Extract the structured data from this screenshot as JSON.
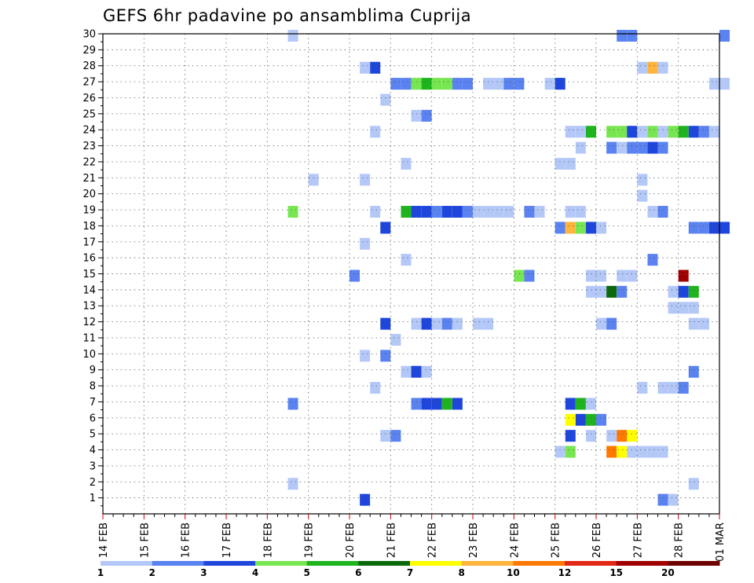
{
  "chart_data": {
    "type": "heatmap",
    "title": "GEFS 6hr padavine po ansamblima Cuprija",
    "x_tick_labels": [
      "14 FEB",
      "15 FEB",
      "16 FEB",
      "17 FEB",
      "18 FEB",
      "19 FEB",
      "20 FEB",
      "21 FEB",
      "22 FEB",
      "23 FEB",
      "24 FEB",
      "25 FEB",
      "26 FEB",
      "27 FEB",
      "28 FEB",
      "01 MAR"
    ],
    "y_tick_labels": [
      "1",
      "2",
      "3",
      "4",
      "5",
      "6",
      "7",
      "8",
      "9",
      "10",
      "11",
      "12",
      "13",
      "14",
      "15",
      "16",
      "17",
      "18",
      "19",
      "20",
      "21",
      "22",
      "23",
      "24",
      "25",
      "26",
      "27",
      "28",
      "29",
      "30"
    ],
    "x_range": [
      "14 FEB",
      "01 MAR"
    ],
    "steps_per_day": 4,
    "y_range": [
      0,
      30
    ],
    "grid": "dotted",
    "legend": {
      "placement": "bottom",
      "labels": [
        "1",
        "2",
        "3",
        "4",
        "5",
        "6",
        "7",
        "8",
        "10",
        "12",
        "15",
        "20"
      ],
      "colors": [
        "#b4c8f8",
        "#5a82f0",
        "#1e46dc",
        "#78e650",
        "#1eb41e",
        "#0a690a",
        "#ffff00",
        "#ffb43c",
        "#ff7800",
        "#e12814",
        "#a00000",
        "#6e0000"
      ]
    },
    "cells": [
      {
        "member": 30,
        "step": 18,
        "bin": 1
      },
      {
        "member": 30,
        "step": 50,
        "bin": 2
      },
      {
        "member": 30,
        "step": 51,
        "bin": 2
      },
      {
        "member": 30,
        "step": 60,
        "bin": 2
      },
      {
        "member": 28,
        "step": 25,
        "bin": 1
      },
      {
        "member": 28,
        "step": 26,
        "bin": 3
      },
      {
        "member": 28,
        "step": 52,
        "bin": 1
      },
      {
        "member": 28,
        "step": 53,
        "bin": 8
      },
      {
        "member": 28,
        "step": 54,
        "bin": 1
      },
      {
        "member": 27,
        "step": 28,
        "bin": 2
      },
      {
        "member": 27,
        "step": 29,
        "bin": 2
      },
      {
        "member": 27,
        "step": 30,
        "bin": 4
      },
      {
        "member": 27,
        "step": 31,
        "bin": 5
      },
      {
        "member": 27,
        "step": 32,
        "bin": 4
      },
      {
        "member": 27,
        "step": 33,
        "bin": 4
      },
      {
        "member": 27,
        "step": 34,
        "bin": 2
      },
      {
        "member": 27,
        "step": 35,
        "bin": 2
      },
      {
        "member": 27,
        "step": 37,
        "bin": 1
      },
      {
        "member": 27,
        "step": 38,
        "bin": 1
      },
      {
        "member": 27,
        "step": 39,
        "bin": 2
      },
      {
        "member": 27,
        "step": 40,
        "bin": 2
      },
      {
        "member": 27,
        "step": 43,
        "bin": 1
      },
      {
        "member": 27,
        "step": 44,
        "bin": 3
      },
      {
        "member": 27,
        "step": 59,
        "bin": 1
      },
      {
        "member": 27,
        "step": 60,
        "bin": 1
      },
      {
        "member": 26,
        "step": 27,
        "bin": 1
      },
      {
        "member": 25,
        "step": 30,
        "bin": 1
      },
      {
        "member": 25,
        "step": 31,
        "bin": 2
      },
      {
        "member": 24,
        "step": 26,
        "bin": 1
      },
      {
        "member": 24,
        "step": 45,
        "bin": 1
      },
      {
        "member": 24,
        "step": 46,
        "bin": 1
      },
      {
        "member": 24,
        "step": 47,
        "bin": 5
      },
      {
        "member": 24,
        "step": 49,
        "bin": 4
      },
      {
        "member": 24,
        "step": 50,
        "bin": 4
      },
      {
        "member": 24,
        "step": 51,
        "bin": 3
      },
      {
        "member": 24,
        "step": 52,
        "bin": 1
      },
      {
        "member": 24,
        "step": 53,
        "bin": 4
      },
      {
        "member": 24,
        "step": 54,
        "bin": 1
      },
      {
        "member": 24,
        "step": 55,
        "bin": 4
      },
      {
        "member": 24,
        "step": 56,
        "bin": 5
      },
      {
        "member": 24,
        "step": 57,
        "bin": 3
      },
      {
        "member": 24,
        "step": 58,
        "bin": 2
      },
      {
        "member": 24,
        "step": 59,
        "bin": 1
      },
      {
        "member": 23,
        "step": 46,
        "bin": 1
      },
      {
        "member": 23,
        "step": 49,
        "bin": 2
      },
      {
        "member": 23,
        "step": 50,
        "bin": 1
      },
      {
        "member": 23,
        "step": 51,
        "bin": 2
      },
      {
        "member": 23,
        "step": 52,
        "bin": 2
      },
      {
        "member": 23,
        "step": 53,
        "bin": 3
      },
      {
        "member": 23,
        "step": 54,
        "bin": 2
      },
      {
        "member": 22,
        "step": 29,
        "bin": 1
      },
      {
        "member": 22,
        "step": 44,
        "bin": 1
      },
      {
        "member": 22,
        "step": 45,
        "bin": 1
      },
      {
        "member": 21,
        "step": 20,
        "bin": 1
      },
      {
        "member": 21,
        "step": 25,
        "bin": 1
      },
      {
        "member": 21,
        "step": 52,
        "bin": 1
      },
      {
        "member": 20,
        "step": 52,
        "bin": 1
      },
      {
        "member": 19,
        "step": 18,
        "bin": 4
      },
      {
        "member": 19,
        "step": 26,
        "bin": 1
      },
      {
        "member": 19,
        "step": 29,
        "bin": 5
      },
      {
        "member": 19,
        "step": 30,
        "bin": 3
      },
      {
        "member": 19,
        "step": 31,
        "bin": 3
      },
      {
        "member": 19,
        "step": 32,
        "bin": 2
      },
      {
        "member": 19,
        "step": 33,
        "bin": 3
      },
      {
        "member": 19,
        "step": 34,
        "bin": 3
      },
      {
        "member": 19,
        "step": 35,
        "bin": 2
      },
      {
        "member": 19,
        "step": 36,
        "bin": 1
      },
      {
        "member": 19,
        "step": 37,
        "bin": 1
      },
      {
        "member": 19,
        "step": 38,
        "bin": 1
      },
      {
        "member": 19,
        "step": 39,
        "bin": 1
      },
      {
        "member": 19,
        "step": 41,
        "bin": 2
      },
      {
        "member": 19,
        "step": 42,
        "bin": 1
      },
      {
        "member": 19,
        "step": 45,
        "bin": 1
      },
      {
        "member": 19,
        "step": 46,
        "bin": 1
      },
      {
        "member": 19,
        "step": 53,
        "bin": 1
      },
      {
        "member": 19,
        "step": 54,
        "bin": 2
      },
      {
        "member": 18,
        "step": 27,
        "bin": 3
      },
      {
        "member": 18,
        "step": 44,
        "bin": 2
      },
      {
        "member": 18,
        "step": 45,
        "bin": 8
      },
      {
        "member": 18,
        "step": 46,
        "bin": 4
      },
      {
        "member": 18,
        "step": 47,
        "bin": 3
      },
      {
        "member": 18,
        "step": 48,
        "bin": 1
      },
      {
        "member": 18,
        "step": 57,
        "bin": 2
      },
      {
        "member": 18,
        "step": 58,
        "bin": 2
      },
      {
        "member": 18,
        "step": 59,
        "bin": 3
      },
      {
        "member": 18,
        "step": 60,
        "bin": 3
      },
      {
        "member": 17,
        "step": 25,
        "bin": 1
      },
      {
        "member": 16,
        "step": 29,
        "bin": 1
      },
      {
        "member": 16,
        "step": 53,
        "bin": 2
      },
      {
        "member": 15,
        "step": 24,
        "bin": 2
      },
      {
        "member": 15,
        "step": 40,
        "bin": 4
      },
      {
        "member": 15,
        "step": 41,
        "bin": 2
      },
      {
        "member": 15,
        "step": 47,
        "bin": 1
      },
      {
        "member": 15,
        "step": 48,
        "bin": 1
      },
      {
        "member": 15,
        "step": 50,
        "bin": 1
      },
      {
        "member": 15,
        "step": 51,
        "bin": 1
      },
      {
        "member": 15,
        "step": 56,
        "bin": 11
      },
      {
        "member": 14,
        "step": 47,
        "bin": 1
      },
      {
        "member": 14,
        "step": 48,
        "bin": 1
      },
      {
        "member": 14,
        "step": 49,
        "bin": 6
      },
      {
        "member": 14,
        "step": 50,
        "bin": 2
      },
      {
        "member": 14,
        "step": 55,
        "bin": 1
      },
      {
        "member": 14,
        "step": 56,
        "bin": 3
      },
      {
        "member": 14,
        "step": 57,
        "bin": 5
      },
      {
        "member": 13,
        "step": 55,
        "bin": 1
      },
      {
        "member": 13,
        "step": 56,
        "bin": 1
      },
      {
        "member": 13,
        "step": 57,
        "bin": 1
      },
      {
        "member": 12,
        "step": 27,
        "bin": 3
      },
      {
        "member": 12,
        "step": 30,
        "bin": 1
      },
      {
        "member": 12,
        "step": 31,
        "bin": 3
      },
      {
        "member": 12,
        "step": 32,
        "bin": 1
      },
      {
        "member": 12,
        "step": 33,
        "bin": 2
      },
      {
        "member": 12,
        "step": 34,
        "bin": 1
      },
      {
        "member": 12,
        "step": 36,
        "bin": 1
      },
      {
        "member": 12,
        "step": 37,
        "bin": 1
      },
      {
        "member": 12,
        "step": 48,
        "bin": 1
      },
      {
        "member": 12,
        "step": 49,
        "bin": 2
      },
      {
        "member": 12,
        "step": 57,
        "bin": 1
      },
      {
        "member": 12,
        "step": 58,
        "bin": 1
      },
      {
        "member": 11,
        "step": 28,
        "bin": 1
      },
      {
        "member": 10,
        "step": 25,
        "bin": 1
      },
      {
        "member": 10,
        "step": 27,
        "bin": 2
      },
      {
        "member": 9,
        "step": 29,
        "bin": 1
      },
      {
        "member": 9,
        "step": 30,
        "bin": 3
      },
      {
        "member": 9,
        "step": 31,
        "bin": 1
      },
      {
        "member": 9,
        "step": 57,
        "bin": 2
      },
      {
        "member": 8,
        "step": 26,
        "bin": 1
      },
      {
        "member": 8,
        "step": 52,
        "bin": 1
      },
      {
        "member": 8,
        "step": 54,
        "bin": 1
      },
      {
        "member": 8,
        "step": 55,
        "bin": 1
      },
      {
        "member": 8,
        "step": 56,
        "bin": 2
      },
      {
        "member": 7,
        "step": 18,
        "bin": 2
      },
      {
        "member": 7,
        "step": 30,
        "bin": 2
      },
      {
        "member": 7,
        "step": 31,
        "bin": 3
      },
      {
        "member": 7,
        "step": 32,
        "bin": 3
      },
      {
        "member": 7,
        "step": 33,
        "bin": 5
      },
      {
        "member": 7,
        "step": 34,
        "bin": 3
      },
      {
        "member": 7,
        "step": 45,
        "bin": 3
      },
      {
        "member": 7,
        "step": 46,
        "bin": 5
      },
      {
        "member": 7,
        "step": 47,
        "bin": 1
      },
      {
        "member": 6,
        "step": 45,
        "bin": 7
      },
      {
        "member": 6,
        "step": 46,
        "bin": 3
      },
      {
        "member": 6,
        "step": 47,
        "bin": 5
      },
      {
        "member": 6,
        "step": 48,
        "bin": 2
      },
      {
        "member": 5,
        "step": 27,
        "bin": 1
      },
      {
        "member": 5,
        "step": 28,
        "bin": 2
      },
      {
        "member": 5,
        "step": 45,
        "bin": 3
      },
      {
        "member": 5,
        "step": 47,
        "bin": 1
      },
      {
        "member": 5,
        "step": 49,
        "bin": 1
      },
      {
        "member": 5,
        "step": 50,
        "bin": 9
      },
      {
        "member": 5,
        "step": 51,
        "bin": 7
      },
      {
        "member": 4,
        "step": 44,
        "bin": 1
      },
      {
        "member": 4,
        "step": 45,
        "bin": 4
      },
      {
        "member": 4,
        "step": 49,
        "bin": 9
      },
      {
        "member": 4,
        "step": 50,
        "bin": 7
      },
      {
        "member": 4,
        "step": 51,
        "bin": 1
      },
      {
        "member": 4,
        "step": 52,
        "bin": 1
      },
      {
        "member": 4,
        "step": 53,
        "bin": 1
      },
      {
        "member": 4,
        "step": 54,
        "bin": 1
      },
      {
        "member": 2,
        "step": 18,
        "bin": 1
      },
      {
        "member": 2,
        "step": 57,
        "bin": 1
      },
      {
        "member": 1,
        "step": 25,
        "bin": 3
      },
      {
        "member": 1,
        "step": 54,
        "bin": 2
      },
      {
        "member": 1,
        "step": 55,
        "bin": 1
      }
    ]
  }
}
